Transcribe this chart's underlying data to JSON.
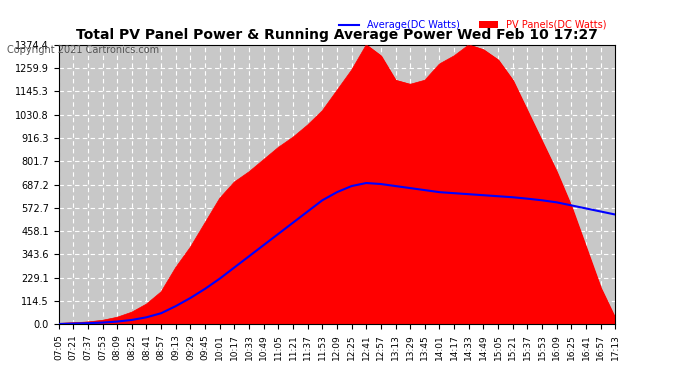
{
  "title": "Total PV Panel Power & Running Average Power Wed Feb 10 17:27",
  "copyright": "Copyright 2021 Cartronics.com",
  "legend_avg": "Average(DC Watts)",
  "legend_pv": "PV Panels(DC Watts)",
  "y_min": 0.0,
  "y_max": 1374.4,
  "y_ticks": [
    0.0,
    114.5,
    229.1,
    343.6,
    458.1,
    572.7,
    687.2,
    801.7,
    916.3,
    1030.8,
    1145.3,
    1259.9,
    1374.4
  ],
  "x_labels": [
    "07:05",
    "07:21",
    "07:37",
    "07:53",
    "08:09",
    "08:25",
    "08:41",
    "08:57",
    "09:13",
    "09:29",
    "09:45",
    "10:01",
    "10:17",
    "10:33",
    "10:49",
    "11:05",
    "11:21",
    "11:37",
    "11:53",
    "12:09",
    "12:25",
    "12:41",
    "12:57",
    "13:13",
    "13:29",
    "13:45",
    "14:01",
    "14:17",
    "14:33",
    "14:49",
    "15:05",
    "15:21",
    "15:37",
    "15:53",
    "16:09",
    "16:25",
    "16:41",
    "16:57",
    "17:13"
  ],
  "bg_color": "#ffffff",
  "plot_bg_color": "#c8c8c8",
  "grid_color": "#ffffff",
  "pv_color": "#ff0000",
  "avg_color": "#0000ff",
  "title_color": "#000000",
  "ylabel_color": "#000000",
  "pv_data": [
    5,
    8,
    12,
    20,
    35,
    60,
    100,
    160,
    280,
    380,
    500,
    620,
    700,
    750,
    810,
    870,
    920,
    980,
    1050,
    1150,
    1250,
    1374,
    1320,
    1200,
    1180,
    1200,
    1280,
    1320,
    1374,
    1350,
    1300,
    1200,
    1050,
    900,
    750,
    580,
    380,
    180,
    30
  ],
  "avg_data": [
    2,
    4,
    6,
    9,
    14,
    22,
    35,
    55,
    90,
    130,
    175,
    225,
    280,
    335,
    390,
    445,
    500,
    555,
    610,
    650,
    680,
    695,
    690,
    680,
    670,
    660,
    650,
    645,
    640,
    635,
    630,
    625,
    618,
    610,
    600,
    585,
    570,
    555,
    540
  ]
}
